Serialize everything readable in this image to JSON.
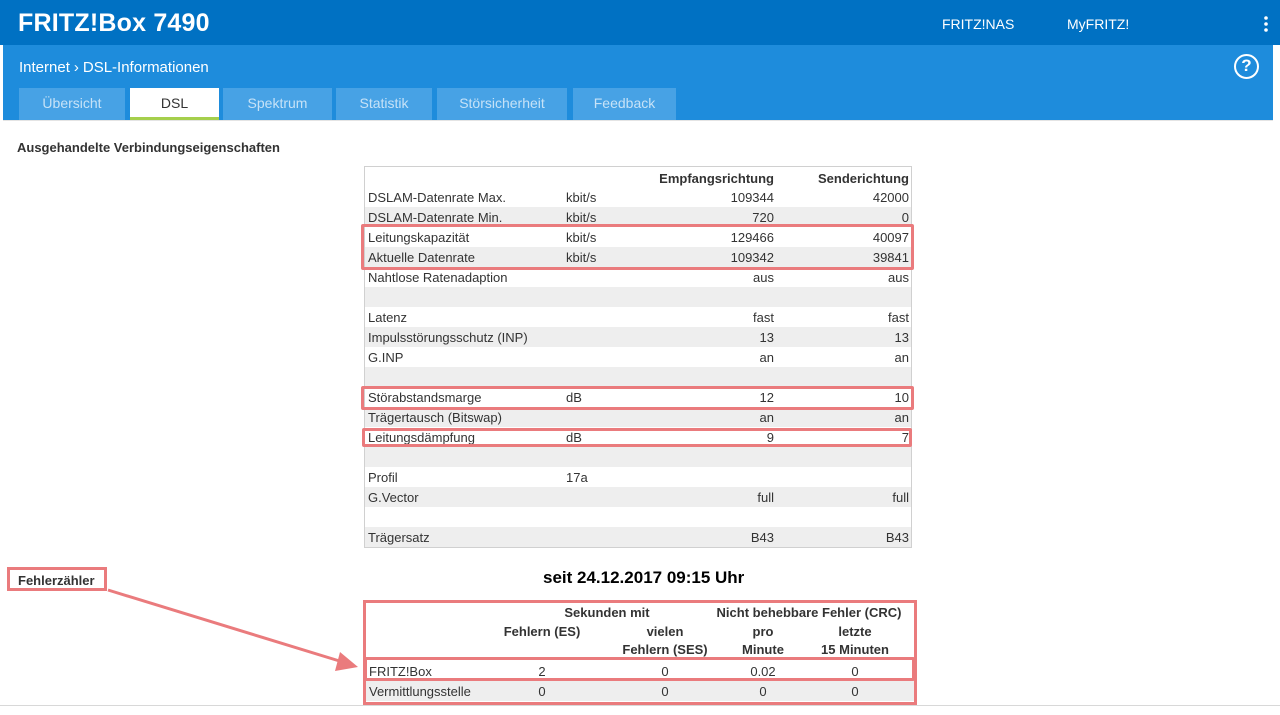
{
  "header": {
    "brand": "FRITZ!Box 7490",
    "links": [
      "FRITZ!NAS",
      "MyFRITZ!"
    ],
    "menu_icon": "kebab-menu-icon"
  },
  "breadcrumb": {
    "parent": "Internet",
    "separator": "›",
    "current": "DSL-Informationen"
  },
  "help_icon": "?",
  "tabs": [
    {
      "label": "Übersicht",
      "active": false
    },
    {
      "label": "DSL",
      "active": true
    },
    {
      "label": "Spektrum",
      "active": false
    },
    {
      "label": "Statistik",
      "active": false
    },
    {
      "label": "Störsicherheit",
      "active": false
    },
    {
      "label": "Feedback",
      "active": false
    }
  ],
  "properties": {
    "title": "Ausgehandelte Verbindungseigenschaften",
    "headers": {
      "receive": "Empfangsrichtung",
      "send": "Senderichtung"
    },
    "rows": [
      {
        "label": "DSLAM-Datenrate Max.",
        "unit": "kbit/s",
        "rx": "109344",
        "tx": "42000"
      },
      {
        "label": "DSLAM-Datenrate Min.",
        "unit": "kbit/s",
        "rx": "720",
        "tx": "0"
      },
      {
        "label": "Leitungskapazität",
        "unit": "kbit/s",
        "rx": "129466",
        "tx": "40097"
      },
      {
        "label": "Aktuelle Datenrate",
        "unit": "kbit/s",
        "rx": "109342",
        "tx": "39841"
      },
      {
        "label": "Nahtlose Ratenadaption",
        "unit": "",
        "rx": "aus",
        "tx": "aus"
      },
      {
        "label": "",
        "unit": "",
        "rx": "",
        "tx": ""
      },
      {
        "label": "Latenz",
        "unit": "",
        "rx": "fast",
        "tx": "fast"
      },
      {
        "label": "Impulsstörungsschutz (INP)",
        "unit": "",
        "rx": "13",
        "tx": "13"
      },
      {
        "label": "G.INP",
        "unit": "",
        "rx": "an",
        "tx": "an"
      },
      {
        "label": "",
        "unit": "",
        "rx": "",
        "tx": ""
      },
      {
        "label": "Störabstandsmarge",
        "unit": "dB",
        "rx": "12",
        "tx": "10"
      },
      {
        "label": "Trägertausch (Bitswap)",
        "unit": "",
        "rx": "an",
        "tx": "an"
      },
      {
        "label": "Leitungsdämpfung",
        "unit": "dB",
        "rx": "9",
        "tx": "7"
      },
      {
        "label": "",
        "unit": "",
        "rx": "",
        "tx": ""
      },
      {
        "label": "Profil",
        "unit": "17a",
        "rx": "",
        "tx": ""
      },
      {
        "label": "G.Vector",
        "unit": "",
        "rx": "full",
        "tx": "full"
      },
      {
        "label": "",
        "unit": "",
        "rx": "",
        "tx": ""
      },
      {
        "label": "Trägersatz",
        "unit": "",
        "rx": "B43",
        "tx": "B43"
      }
    ]
  },
  "errors": {
    "label": "Fehlerzähler",
    "since": "seit 24.12.2017 09:15 Uhr",
    "group_seconds": "Sekunden mit",
    "group_crc": "Nicht behebbare Fehler (CRC)",
    "col_es": "Fehlern (ES)",
    "col_ses_1": "vielen",
    "col_ses_2": "Fehlern (SES)",
    "col_min_1": "pro",
    "col_min_2": "Minute",
    "col_15_1": "letzte",
    "col_15_2": "15 Minuten",
    "rows": [
      {
        "label": "FRITZ!Box",
        "es": "2",
        "ses": "0",
        "per_min": "0.02",
        "last15": "0"
      },
      {
        "label": "Vermittlungsstelle",
        "es": "0",
        "ses": "0",
        "per_min": "0",
        "last15": "0"
      }
    ]
  },
  "colors": {
    "topbar": "#0071c3",
    "subbar": "#1e8cdc",
    "tab": "#47a2e5",
    "active_tab_underline": "#a5cf4c",
    "highlight": "#ea7b7d"
  }
}
